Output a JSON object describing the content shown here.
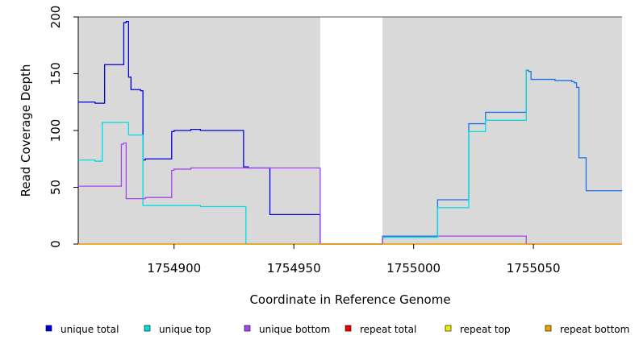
{
  "chart_data": {
    "type": "line",
    "xlabel": "Coordinate in Reference Genome",
    "ylabel": "Read Coverage Depth",
    "xlim": [
      1754860,
      1755087
    ],
    "ylim": [
      0,
      200
    ],
    "x_ticks": [
      1754900,
      1754950,
      1755000,
      1755050
    ],
    "x_tick_labels": [
      "1754900",
      "1754950",
      "1755000",
      "1755050"
    ],
    "y_ticks": [
      0,
      50,
      100,
      150,
      200
    ],
    "y_tick_labels": [
      "0",
      "50",
      "100",
      "150",
      "200"
    ],
    "shaded_regions": [
      [
        1754860,
        1754961
      ],
      [
        1754987,
        1755087
      ]
    ],
    "background_color": "#d9d9d9",
    "legend_position": "bottom",
    "series": [
      {
        "name": "unique total",
        "color": "#0000dd",
        "step": true,
        "points": [
          [
            1754860,
            125
          ],
          [
            1754867,
            124
          ],
          [
            1754871,
            158
          ],
          [
            1754879,
            195
          ],
          [
            1754880,
            196
          ],
          [
            1754881,
            147
          ],
          [
            1754882,
            136
          ],
          [
            1754886,
            135
          ],
          [
            1754887,
            74
          ],
          [
            1754888,
            75
          ],
          [
            1754899,
            99
          ],
          [
            1754900,
            100
          ],
          [
            1754907,
            101
          ],
          [
            1754911,
            100
          ],
          [
            1754929,
            68
          ],
          [
            1754931,
            67
          ],
          [
            1754940,
            26
          ],
          [
            1754961,
            0
          ],
          [
            1754987,
            6
          ],
          [
            1754988,
            7
          ]
        ]
      },
      {
        "name": "unique top",
        "color": "#00dddd",
        "step": true,
        "points": [
          [
            1754860,
            74
          ],
          [
            1754867,
            73
          ],
          [
            1754870,
            107
          ],
          [
            1754881,
            96
          ],
          [
            1754887,
            34
          ],
          [
            1754911,
            33
          ],
          [
            1754930,
            0
          ],
          [
            1754987,
            0
          ]
        ]
      },
      {
        "name": "unique bottom",
        "color": "#aa44ee",
        "step": true,
        "points": [
          [
            1754860,
            51
          ],
          [
            1754878,
            88
          ],
          [
            1754879,
            89
          ],
          [
            1754880,
            40
          ],
          [
            1754888,
            41
          ],
          [
            1754899,
            65
          ],
          [
            1754900,
            66
          ],
          [
            1754907,
            67
          ],
          [
            1754931,
            67
          ],
          [
            1754961,
            0
          ],
          [
            1754987,
            7
          ],
          [
            1755047,
            0
          ],
          [
            1755087,
            0
          ]
        ]
      },
      {
        "name": "repeat total",
        "color": "#ee0000",
        "step": true,
        "points": [
          [
            1754860,
            0
          ],
          [
            1755087,
            0
          ]
        ]
      },
      {
        "name": "repeat top",
        "color": "#eeee00",
        "step": true,
        "points": [
          [
            1754860,
            0
          ],
          [
            1755087,
            0
          ]
        ]
      },
      {
        "name": "repeat bottom",
        "color": "#f0a000",
        "step": true,
        "points": [
          [
            1754860,
            0
          ],
          [
            1755087,
            0
          ]
        ]
      },
      {
        "name": "",
        "color": "#1a73e8",
        "step": true,
        "legend": false,
        "points": [
          [
            1754987,
            7
          ],
          [
            1755010,
            39
          ],
          [
            1755023,
            106
          ],
          [
            1755030,
            116
          ],
          [
            1755047,
            153
          ],
          [
            1755048,
            152
          ],
          [
            1755049,
            145
          ],
          [
            1755058,
            145
          ],
          [
            1755059,
            144
          ],
          [
            1755066,
            143
          ],
          [
            1755067,
            142
          ],
          [
            1755068,
            138
          ],
          [
            1755069,
            76
          ],
          [
            1755072,
            47
          ],
          [
            1755087,
            47
          ]
        ]
      },
      {
        "name": "",
        "color": "#00dddd",
        "step": true,
        "legend": false,
        "points": [
          [
            1754987,
            6
          ],
          [
            1755010,
            32
          ],
          [
            1755023,
            99
          ],
          [
            1755030,
            109
          ],
          [
            1755047,
            153
          ]
        ]
      }
    ]
  }
}
